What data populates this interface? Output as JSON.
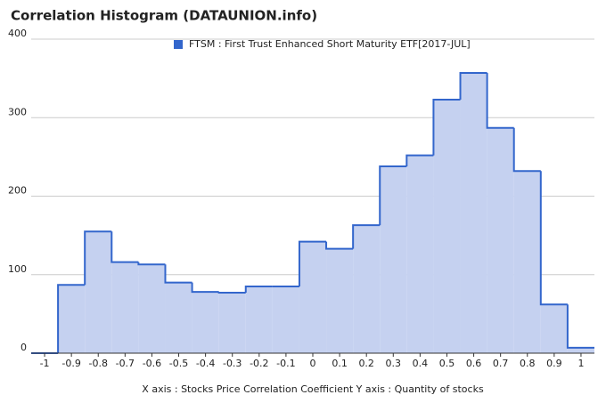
{
  "chart_data": {
    "type": "histogram",
    "title": "Correlation Histogram (DATAUNION.info)",
    "x_label": "X axis : Stocks Price Correlation Coefficient  Y axis : Quantity of stocks",
    "series_name": "FTSM : First Trust Enhanced Short Maturity ETF[2017-JUL]",
    "color": "#3366cc",
    "fill": "#c5d1f0",
    "bins": [
      -1.05,
      -0.95,
      -0.85,
      -0.75,
      -0.65,
      -0.55,
      -0.45,
      -0.35,
      -0.25,
      -0.15,
      -0.05,
      0.05,
      0.15,
      0.25,
      0.35,
      0.45,
      0.55,
      0.65,
      0.75,
      0.85,
      0.95,
      1.05
    ],
    "counts": [
      0,
      87,
      155,
      116,
      113,
      90,
      78,
      77,
      85,
      85,
      142,
      133,
      163,
      238,
      252,
      323,
      357,
      287,
      232,
      62,
      7
    ],
    "xlim": [
      -1.05,
      1.05
    ],
    "xticks": [
      -1,
      -0.9,
      -0.8,
      -0.7,
      -0.6,
      -0.5,
      -0.4,
      -0.3,
      -0.2,
      -0.1,
      0,
      0.1,
      0.2,
      0.3,
      0.4,
      0.5,
      0.6,
      0.7,
      0.8,
      0.9,
      1
    ],
    "ylim": [
      0,
      400
    ],
    "yticks": [
      0,
      100,
      200,
      300,
      400
    ],
    "grid": true
  }
}
